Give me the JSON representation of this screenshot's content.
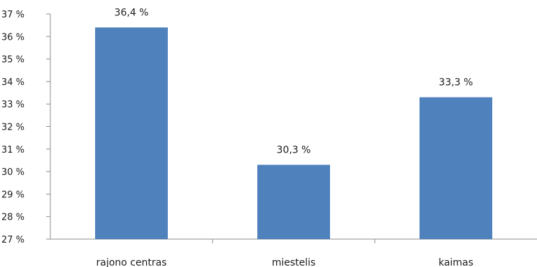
{
  "chart_data": {
    "type": "bar",
    "title": "",
    "xlabel": "",
    "ylabel": "",
    "categories": [
      "rajono centras",
      "miestelis",
      "kaimas"
    ],
    "values": [
      36.4,
      30.3,
      33.3
    ],
    "data_labels": [
      "36,4 %",
      "30,3 %",
      "33,3 %"
    ],
    "ylim": [
      27,
      37
    ],
    "yticks": [
      27,
      28,
      29,
      30,
      31,
      32,
      33,
      34,
      35,
      36,
      37
    ],
    "ytick_labels": [
      "27 %",
      "28 %",
      "29 %",
      "30 %",
      "31 %",
      "32 %",
      "33 %",
      "34 %",
      "35 %",
      "36 %",
      "37 %"
    ],
    "grid": false,
    "legend": "none",
    "bar_color": "#4f81bd"
  }
}
